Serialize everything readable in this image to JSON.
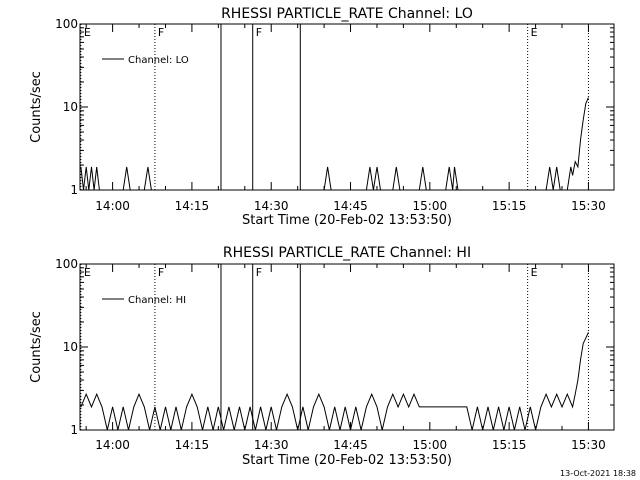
{
  "chart_data": [
    {
      "type": "line",
      "title": "RHESSI PARTICLE_RATE Channel: LO",
      "xlabel": "Start Time (20-Feb-02 13:53:50)",
      "ylabel": "Counts/sec",
      "y_scale": "log",
      "ylim": [
        1,
        100
      ],
      "y_ticks": [
        "1",
        "10",
        "100"
      ],
      "x_tick_labels": [
        "14:00",
        "14:15",
        "14:30",
        "14:45",
        "15:00",
        "15:15",
        "15:30"
      ],
      "legend": {
        "entries": [
          "Channel: LO"
        ],
        "placement": "top-left"
      },
      "markers": [
        {
          "label": "E",
          "style": "dotted"
        },
        {
          "label": "F",
          "style": "dotted"
        },
        {
          "label": "",
          "style": "solid"
        },
        {
          "label": "F",
          "style": "solid"
        },
        {
          "label": "",
          "style": "solid"
        },
        {
          "label": "E",
          "style": "dotted"
        },
        {
          "label": "",
          "style": "dotted"
        }
      ],
      "series": [
        {
          "values": [
            {
              "x": "13:54:00",
              "y": 1.9
            },
            {
              "x": "13:54:30",
              "y": 1
            },
            {
              "x": "13:55:00",
              "y": 1.9
            },
            {
              "x": "13:55:30",
              "y": 1
            },
            {
              "x": "13:56:00",
              "y": 1.9
            },
            {
              "x": "13:56:30",
              "y": 1
            },
            {
              "x": "13:57:00",
              "y": 1.9
            },
            {
              "x": "13:57:30",
              "y": 1
            },
            {
              "x": "14:02:00",
              "y": 1
            },
            {
              "x": "14:02:40",
              "y": 1.9
            },
            {
              "x": "14:03:20",
              "y": 1
            },
            {
              "x": "14:06:00",
              "y": 1
            },
            {
              "x": "14:06:40",
              "y": 1.9
            },
            {
              "x": "14:07:20",
              "y": 1
            },
            {
              "x": "14:40:00",
              "y": 1
            },
            {
              "x": "14:40:40",
              "y": 1.9
            },
            {
              "x": "14:41:20",
              "y": 1
            },
            {
              "x": "14:48:00",
              "y": 1
            },
            {
              "x": "14:48:40",
              "y": 1.9
            },
            {
              "x": "14:49:20",
              "y": 1
            },
            {
              "x": "14:50:00",
              "y": 1.9
            },
            {
              "x": "14:50:40",
              "y": 1
            },
            {
              "x": "14:53:00",
              "y": 1
            },
            {
              "x": "14:53:40",
              "y": 1.9
            },
            {
              "x": "14:54:20",
              "y": 1
            },
            {
              "x": "14:58:00",
              "y": 1
            },
            {
              "x": "14:58:40",
              "y": 1.9
            },
            {
              "x": "14:59:20",
              "y": 1
            },
            {
              "x": "15:03:00",
              "y": 1
            },
            {
              "x": "15:03:40",
              "y": 1.9
            },
            {
              "x": "15:04:20",
              "y": 1
            },
            {
              "x": "15:04:40",
              "y": 1.9
            },
            {
              "x": "15:05:20",
              "y": 1
            },
            {
              "x": "15:22:00",
              "y": 1
            },
            {
              "x": "15:22:40",
              "y": 1.9
            },
            {
              "x": "15:23:20",
              "y": 1
            },
            {
              "x": "15:24:00",
              "y": 1.9
            },
            {
              "x": "15:24:40",
              "y": 1
            },
            {
              "x": "15:26:00",
              "y": 1
            },
            {
              "x": "15:26:40",
              "y": 1.9
            },
            {
              "x": "15:27:00",
              "y": 1.5
            },
            {
              "x": "15:27:30",
              "y": 2.2
            },
            {
              "x": "15:28:00",
              "y": 1.9
            },
            {
              "x": "15:28:30",
              "y": 4
            },
            {
              "x": "15:29:00",
              "y": 7
            },
            {
              "x": "15:29:30",
              "y": 11
            },
            {
              "x": "15:30:00",
              "y": 13
            }
          ]
        }
      ]
    },
    {
      "type": "line",
      "title": "RHESSI PARTICLE_RATE Channel: HI",
      "xlabel": "Start Time (20-Feb-02 13:53:50)",
      "ylabel": "Counts/sec",
      "y_scale": "log",
      "ylim": [
        1,
        100
      ],
      "y_ticks": [
        "1",
        "10",
        "100"
      ],
      "x_tick_labels": [
        "14:00",
        "14:15",
        "14:30",
        "14:45",
        "15:00",
        "15:15",
        "15:30"
      ],
      "legend": {
        "entries": [
          "Channel: HI"
        ],
        "placement": "top-left"
      },
      "markers": [
        {
          "label": "E",
          "style": "dotted"
        },
        {
          "label": "F",
          "style": "dotted"
        },
        {
          "label": "",
          "style": "solid"
        },
        {
          "label": "F",
          "style": "solid"
        },
        {
          "label": "",
          "style": "solid"
        },
        {
          "label": "E",
          "style": "dotted"
        },
        {
          "label": "",
          "style": "dotted"
        }
      ],
      "series": [
        {
          "values": [
            {
              "x": "13:54:00",
              "y": 1.9
            },
            {
              "x": "13:55:00",
              "y": 2.7
            },
            {
              "x": "13:56:00",
              "y": 1.9
            },
            {
              "x": "13:57:00",
              "y": 2.7
            },
            {
              "x": "13:58:00",
              "y": 1.9
            },
            {
              "x": "13:59:00",
              "y": 1
            },
            {
              "x": "14:00:00",
              "y": 1.9
            },
            {
              "x": "14:01:00",
              "y": 1
            },
            {
              "x": "14:02:00",
              "y": 1.9
            },
            {
              "x": "14:03:00",
              "y": 1
            },
            {
              "x": "14:04:00",
              "y": 1.9
            },
            {
              "x": "14:05:00",
              "y": 2.7
            },
            {
              "x": "14:06:00",
              "y": 1.9
            },
            {
              "x": "14:07:00",
              "y": 1
            },
            {
              "x": "14:08:00",
              "y": 1.9
            },
            {
              "x": "14:09:00",
              "y": 1
            },
            {
              "x": "14:10:00",
              "y": 1.9
            },
            {
              "x": "14:11:00",
              "y": 1
            },
            {
              "x": "14:12:00",
              "y": 1.9
            },
            {
              "x": "14:13:00",
              "y": 1
            },
            {
              "x": "14:14:00",
              "y": 1.9
            },
            {
              "x": "14:15:00",
              "y": 2.7
            },
            {
              "x": "14:16:00",
              "y": 1.9
            },
            {
              "x": "14:17:00",
              "y": 1
            },
            {
              "x": "14:18:00",
              "y": 1.9
            },
            {
              "x": "14:19:00",
              "y": 1
            },
            {
              "x": "14:20:00",
              "y": 1.9
            },
            {
              "x": "14:21:00",
              "y": 1
            },
            {
              "x": "14:22:00",
              "y": 1.9
            },
            {
              "x": "14:23:00",
              "y": 1
            },
            {
              "x": "14:24:00",
              "y": 1.9
            },
            {
              "x": "14:25:00",
              "y": 1
            },
            {
              "x": "14:26:00",
              "y": 1.9
            },
            {
              "x": "14:27:00",
              "y": 1
            },
            {
              "x": "14:28:00",
              "y": 1.9
            },
            {
              "x": "14:29:00",
              "y": 1
            },
            {
              "x": "14:30:00",
              "y": 1.9
            },
            {
              "x": "14:31:00",
              "y": 1
            },
            {
              "x": "14:32:00",
              "y": 1.9
            },
            {
              "x": "14:33:00",
              "y": 2.7
            },
            {
              "x": "14:34:00",
              "y": 1.9
            },
            {
              "x": "14:35:00",
              "y": 1
            },
            {
              "x": "14:36:00",
              "y": 1.9
            },
            {
              "x": "14:37:00",
              "y": 1
            },
            {
              "x": "14:38:00",
              "y": 1.9
            },
            {
              "x": "14:39:00",
              "y": 2.7
            },
            {
              "x": "14:40:00",
              "y": 1.9
            },
            {
              "x": "14:41:00",
              "y": 1
            },
            {
              "x": "14:42:00",
              "y": 1.9
            },
            {
              "x": "14:43:00",
              "y": 1
            },
            {
              "x": "14:44:00",
              "y": 1.9
            },
            {
              "x": "14:45:00",
              "y": 1
            },
            {
              "x": "14:46:00",
              "y": 1.9
            },
            {
              "x": "14:47:00",
              "y": 1
            },
            {
              "x": "14:48:00",
              "y": 1.9
            },
            {
              "x": "14:49:00",
              "y": 2.7
            },
            {
              "x": "14:50:00",
              "y": 1.9
            },
            {
              "x": "14:51:00",
              "y": 1
            },
            {
              "x": "14:52:00",
              "y": 1.9
            },
            {
              "x": "14:53:00",
              "y": 2.7
            },
            {
              "x": "14:54:00",
              "y": 1.9
            },
            {
              "x": "14:55:00",
              "y": 2.7
            },
            {
              "x": "14:56:00",
              "y": 1.9
            },
            {
              "x": "14:57:00",
              "y": 2.7
            },
            {
              "x": "14:58:00",
              "y": 1.9
            },
            {
              "x": "14:59:00",
              "y": 1.9
            },
            {
              "x": "15:07:00",
              "y": 1.9
            },
            {
              "x": "15:08:00",
              "y": 1
            },
            {
              "x": "15:09:00",
              "y": 1.9
            },
            {
              "x": "15:10:00",
              "y": 1
            },
            {
              "x": "15:11:00",
              "y": 1.9
            },
            {
              "x": "15:12:00",
              "y": 1
            },
            {
              "x": "15:13:00",
              "y": 1.9
            },
            {
              "x": "15:14:00",
              "y": 1
            },
            {
              "x": "15:15:00",
              "y": 1.9
            },
            {
              "x": "15:16:00",
              "y": 1
            },
            {
              "x": "15:17:00",
              "y": 1.9
            },
            {
              "x": "15:18:00",
              "y": 1
            },
            {
              "x": "15:19:00",
              "y": 1.9
            },
            {
              "x": "15:20:00",
              "y": 1
            },
            {
              "x": "15:21:00",
              "y": 1.9
            },
            {
              "x": "15:22:00",
              "y": 2.7
            },
            {
              "x": "15:23:00",
              "y": 1.9
            },
            {
              "x": "15:24:00",
              "y": 2.7
            },
            {
              "x": "15:25:00",
              "y": 1.9
            },
            {
              "x": "15:26:00",
              "y": 2.7
            },
            {
              "x": "15:27:00",
              "y": 1.9
            },
            {
              "x": "15:27:30",
              "y": 2.7
            },
            {
              "x": "15:28:00",
              "y": 4
            },
            {
              "x": "15:28:30",
              "y": 7
            },
            {
              "x": "15:29:00",
              "y": 11
            },
            {
              "x": "15:30:00",
              "y": 15
            }
          ]
        }
      ]
    }
  ],
  "footer": {
    "timestamp": "13-Oct-2021 18:38"
  }
}
